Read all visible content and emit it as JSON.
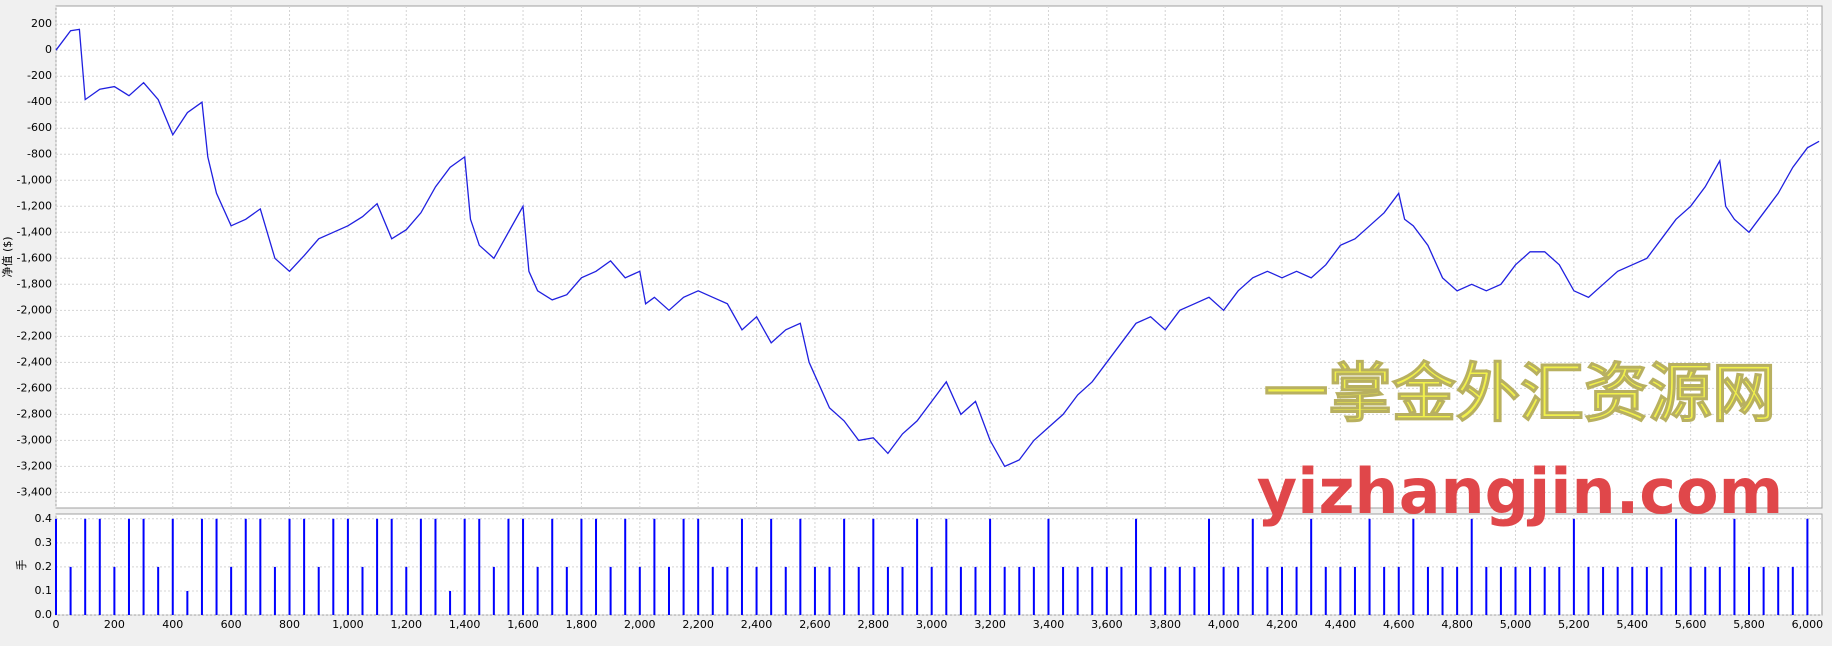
{
  "chart_data": [
    {
      "type": "line",
      "ylabel": "净值 ($)",
      "color": "#2020e0",
      "grid": true,
      "xlim": [
        0,
        6050
      ],
      "ylim": [
        -3520,
        340
      ],
      "yticks": [
        200,
        0,
        -200,
        -400,
        -600,
        -800,
        {
          "value": -1000,
          "label": "-1,000"
        },
        {
          "value": -1200,
          "label": "-1,200"
        },
        {
          "value": -1400,
          "label": "-1,400"
        },
        {
          "value": -1600,
          "label": "-1,600"
        },
        {
          "value": -1800,
          "label": "-1,800"
        },
        {
          "value": -2000,
          "label": "-2,000"
        },
        {
          "value": -2200,
          "label": "-2,200"
        },
        {
          "value": -2400,
          "label": "-2,400"
        },
        {
          "value": -2600,
          "label": "-2,600"
        },
        {
          "value": -2800,
          "label": "-2,800"
        },
        {
          "value": -3000,
          "label": "-3,000"
        },
        {
          "value": -3200,
          "label": "-3,200"
        },
        {
          "value": -3400,
          "label": "-3,400"
        }
      ],
      "x": [
        0,
        50,
        80,
        100,
        150,
        200,
        250,
        300,
        350,
        400,
        450,
        500,
        520,
        550,
        600,
        650,
        700,
        750,
        800,
        850,
        900,
        950,
        1000,
        1050,
        1100,
        1150,
        1200,
        1250,
        1300,
        1350,
        1400,
        1420,
        1450,
        1500,
        1550,
        1600,
        1620,
        1650,
        1700,
        1750,
        1800,
        1850,
        1900,
        1950,
        2000,
        2020,
        2050,
        2100,
        2150,
        2200,
        2250,
        2300,
        2350,
        2400,
        2450,
        2500,
        2550,
        2580,
        2600,
        2650,
        2700,
        2750,
        2800,
        2850,
        2900,
        2950,
        3000,
        3050,
        3100,
        3150,
        3200,
        3250,
        3300,
        3350,
        3400,
        3450,
        3500,
        3550,
        3600,
        3650,
        3700,
        3750,
        3800,
        3850,
        3900,
        3950,
        4000,
        4050,
        4100,
        4150,
        4200,
        4250,
        4300,
        4350,
        4400,
        4450,
        4500,
        4550,
        4600,
        4620,
        4650,
        4700,
        4750,
        4800,
        4850,
        4900,
        4950,
        5000,
        5050,
        5100,
        5150,
        5200,
        5250,
        5300,
        5350,
        5400,
        5450,
        5500,
        5550,
        5600,
        5650,
        5700,
        5720,
        5750,
        5800,
        5850,
        5900,
        5950,
        6000,
        6040
      ],
      "values": [
        0,
        150,
        160,
        -380,
        -300,
        -280,
        -350,
        -250,
        -380,
        -650,
        -480,
        -400,
        -820,
        -1100,
        -1350,
        -1300,
        -1220,
        -1600,
        -1700,
        -1580,
        -1450,
        -1400,
        -1350,
        -1280,
        -1180,
        -1450,
        -1380,
        -1250,
        -1050,
        -900,
        -820,
        -1300,
        -1500,
        -1600,
        -1400,
        -1200,
        -1700,
        -1850,
        -1920,
        -1880,
        -1750,
        -1700,
        -1620,
        -1750,
        -1700,
        -1950,
        -1900,
        -2000,
        -1900,
        -1850,
        -1900,
        -1950,
        -2150,
        -2050,
        -2250,
        -2150,
        -2100,
        -2400,
        -2500,
        -2750,
        -2850,
        -3000,
        -2980,
        -3100,
        -2950,
        -2850,
        -2700,
        -2550,
        -2800,
        -2700,
        -3000,
        -3200,
        -3150,
        -3000,
        -2900,
        -2800,
        -2650,
        -2550,
        -2400,
        -2250,
        -2100,
        -2050,
        -2150,
        -2000,
        -1950,
        -1900,
        -2000,
        -1850,
        -1750,
        -1700,
        -1750,
        -1700,
        -1750,
        -1650,
        -1500,
        -1450,
        -1350,
        -1250,
        -1100,
        -1300,
        -1350,
        -1500,
        -1750,
        -1850,
        -1800,
        -1850,
        -1800,
        -1650,
        -1550,
        -1550,
        -1650,
        -1850,
        -1900,
        -1800,
        -1700,
        -1650,
        -1600,
        -1450,
        -1300,
        -1200,
        -1050,
        -850,
        -1200,
        -1300,
        -1400,
        -1250,
        -1100,
        -900,
        -750,
        -700
      ],
      "annotations": [
        "一掌金外汇资源网",
        "yizhangjin.com"
      ]
    },
    {
      "type": "bar",
      "ylabel": "手",
      "color": "#0000ff",
      "grid": true,
      "xlim": [
        0,
        6050
      ],
      "ylim": [
        0,
        0.42
      ],
      "yticks": [
        0.4,
        0.3,
        0.2,
        0.1,
        {
          "value": 0,
          "label": "0.0"
        }
      ],
      "xticks": [
        0,
        200,
        400,
        600,
        800,
        {
          "value": 1000,
          "label": "1,000"
        },
        {
          "value": 1200,
          "label": "1,200"
        },
        {
          "value": 1400,
          "label": "1,400"
        },
        {
          "value": 1600,
          "label": "1,600"
        },
        {
          "value": 1800,
          "label": "1,800"
        },
        {
          "value": 2000,
          "label": "2,000"
        },
        {
          "value": 2200,
          "label": "2,200"
        },
        {
          "value": 2400,
          "label": "2,400"
        },
        {
          "value": 2600,
          "label": "2,600"
        },
        {
          "value": 2800,
          "label": "2,800"
        },
        {
          "value": 3000,
          "label": "3,000"
        },
        {
          "value": 3200,
          "label": "3,200"
        },
        {
          "value": 3400,
          "label": "3,400"
        },
        {
          "value": 3600,
          "label": "3,600"
        },
        {
          "value": 3800,
          "label": "3,800"
        },
        {
          "value": 4000,
          "label": "4,000"
        },
        {
          "value": 4200,
          "label": "4,200"
        },
        {
          "value": 4400,
          "label": "4,400"
        },
        {
          "value": 4600,
          "label": "4,600"
        },
        {
          "value": 4800,
          "label": "4,800"
        },
        {
          "value": 5000,
          "label": "5,000"
        },
        {
          "value": 5200,
          "label": "5,200"
        },
        {
          "value": 5400,
          "label": "5,400"
        },
        {
          "value": 5600,
          "label": "5,600"
        },
        {
          "value": 5800,
          "label": "5,800"
        },
        {
          "value": 6000,
          "label": "6,000"
        }
      ],
      "x": [
        0,
        50,
        100,
        150,
        200,
        250,
        300,
        350,
        400,
        450,
        500,
        550,
        600,
        650,
        700,
        750,
        800,
        850,
        900,
        950,
        1000,
        1050,
        1100,
        1150,
        1200,
        1250,
        1300,
        1350,
        1400,
        1450,
        1500,
        1550,
        1600,
        1650,
        1700,
        1750,
        1800,
        1850,
        1900,
        1950,
        2000,
        2050,
        2100,
        2150,
        2200,
        2250,
        2300,
        2350,
        2400,
        2450,
        2500,
        2550,
        2600,
        2650,
        2700,
        2750,
        2800,
        2850,
        2900,
        2950,
        3000,
        3050,
        3100,
        3150,
        3200,
        3250,
        3300,
        3350,
        3400,
        3450,
        3500,
        3550,
        3600,
        3650,
        3700,
        3750,
        3800,
        3850,
        3900,
        3950,
        4000,
        4050,
        4100,
        4150,
        4200,
        4250,
        4300,
        4350,
        4400,
        4450,
        4500,
        4550,
        4600,
        4650,
        4700,
        4750,
        4800,
        4850,
        4900,
        4950,
        5000,
        5050,
        5100,
        5150,
        5200,
        5250,
        5300,
        5350,
        5400,
        5450,
        5500,
        5550,
        5600,
        5650,
        5700,
        5750,
        5800,
        5850,
        5900,
        5950,
        6000
      ],
      "values": [
        0.4,
        0.2,
        0.4,
        0.4,
        0.2,
        0.4,
        0.4,
        0.2,
        0.4,
        0.1,
        0.4,
        0.4,
        0.2,
        0.4,
        0.4,
        0.2,
        0.4,
        0.4,
        0.2,
        0.4,
        0.4,
        0.2,
        0.4,
        0.4,
        0.2,
        0.4,
        0.4,
        0.1,
        0.4,
        0.4,
        0.2,
        0.4,
        0.4,
        0.2,
        0.4,
        0.2,
        0.4,
        0.4,
        0.2,
        0.4,
        0.2,
        0.4,
        0.2,
        0.4,
        0.4,
        0.2,
        0.2,
        0.4,
        0.2,
        0.4,
        0.2,
        0.4,
        0.2,
        0.2,
        0.4,
        0.2,
        0.4,
        0.2,
        0.2,
        0.4,
        0.2,
        0.4,
        0.2,
        0.2,
        0.4,
        0.2,
        0.2,
        0.2,
        0.4,
        0.2,
        0.2,
        0.2,
        0.2,
        0.2,
        0.4,
        0.2,
        0.2,
        0.2,
        0.2,
        0.4,
        0.2,
        0.2,
        0.4,
        0.2,
        0.2,
        0.2,
        0.4,
        0.2,
        0.2,
        0.2,
        0.4,
        0.2,
        0.2,
        0.4,
        0.2,
        0.2,
        0.2,
        0.4,
        0.2,
        0.2,
        0.2,
        0.2,
        0.2,
        0.2,
        0.4,
        0.2,
        0.2,
        0.2,
        0.2,
        0.2,
        0.2,
        0.4,
        0.2,
        0.2,
        0.2,
        0.4,
        0.2,
        0.2,
        0.2,
        0.2,
        0.4
      ]
    }
  ]
}
